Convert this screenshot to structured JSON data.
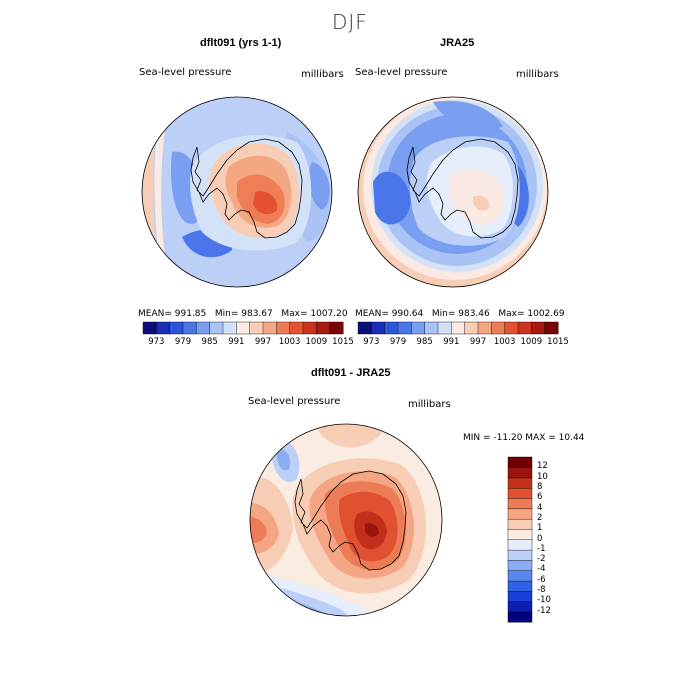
{
  "title": "DJF",
  "colors": {
    "abs_scale": [
      "#0a0f7a",
      "#1a2fb5",
      "#2c55dc",
      "#4a76ea",
      "#7a9ef0",
      "#a9c3f5",
      "#d4e2f8",
      "#fbeae3",
      "#f8cdb6",
      "#f4a783",
      "#ef7e57",
      "#e5522f",
      "#cc3320",
      "#a8190f",
      "#7a0505"
    ],
    "diff_scale": [
      "#000080",
      "#0b1fb0",
      "#1a3fd6",
      "#2f63e6",
      "#5a86ee",
      "#8aacf3",
      "#bcd0f7",
      "#e6eefb",
      "#fbece2",
      "#f8cdb6",
      "#f3a584",
      "#ec7c56",
      "#df5130",
      "#c2301c",
      "#9c1410",
      "#6e0000"
    ]
  },
  "panels": [
    {
      "title": "dflt091 (yrs 1-1)",
      "left_label": "Sea-level pressure",
      "right_label": "millibars",
      "stats": {
        "mean_label": "MEAN=",
        "mean": "991.85",
        "min_label": "Min=",
        "min": "983.67",
        "max_label": "Max=",
        "max": "1007.20"
      }
    },
    {
      "title": "JRA25",
      "left_label": "Sea-level pressure",
      "right_label": "millibars",
      "stats": {
        "mean_label": "MEAN=",
        "mean": "990.64",
        "min_label": "Min=",
        "min": "983.46",
        "max_label": "Max=",
        "max": "1002.69"
      }
    },
    {
      "title": "dflt091 - JRA25",
      "left_label": "Sea-level pressure",
      "right_label": "millibars",
      "stats_text": "MIN = -11.20 MAX =  10.44"
    }
  ],
  "chart_data": [
    {
      "type": "heatmap",
      "title": "dflt091 (yrs 1-1)",
      "variable": "Sea-level pressure",
      "units": "millibars",
      "mean": 991.85,
      "min": 983.67,
      "max": 1007.2,
      "colorbar_ticks": [
        "973",
        "979",
        "985",
        "991",
        "997",
        "1003",
        "1009",
        "1015"
      ]
    },
    {
      "type": "heatmap",
      "title": "JRA25",
      "variable": "Sea-level pressure",
      "units": "millibars",
      "mean": 990.64,
      "min": 983.46,
      "max": 1002.69,
      "colorbar_ticks": [
        "973",
        "979",
        "985",
        "991",
        "997",
        "1003",
        "1009",
        "1015"
      ]
    },
    {
      "type": "heatmap",
      "title": "dflt091 - JRA25",
      "variable": "Sea-level pressure",
      "units": "millibars",
      "min": -11.2,
      "max": 10.44,
      "colorbar_ticks": [
        "12",
        "10",
        "8",
        "6",
        "4",
        "2",
        "1",
        "0",
        "-1",
        "-2",
        "-4",
        "-6",
        "-8",
        "-10",
        "-12"
      ]
    }
  ]
}
